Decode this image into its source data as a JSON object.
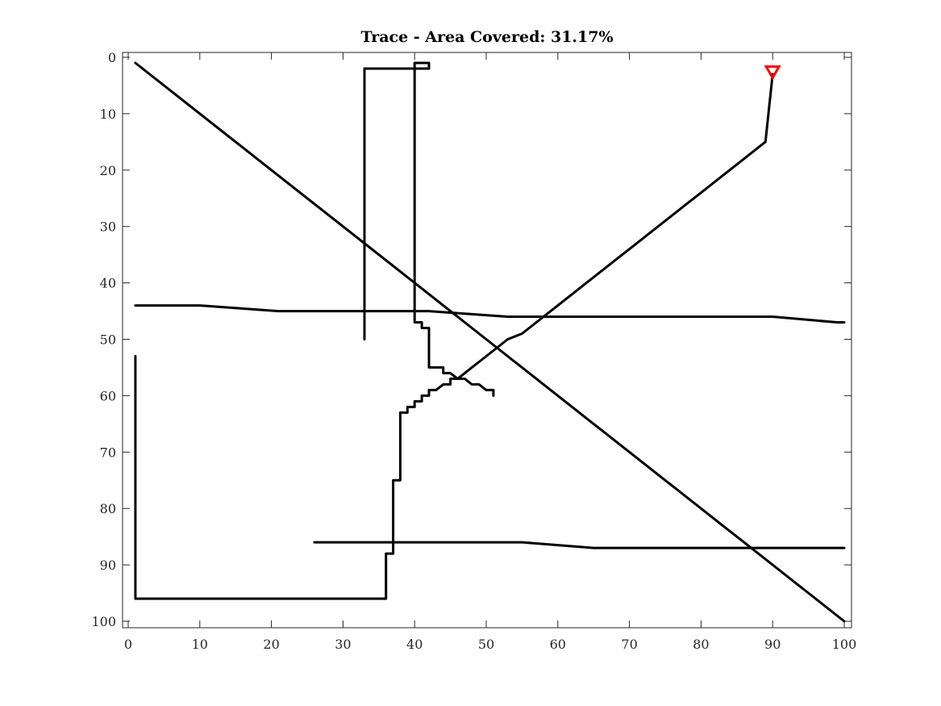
{
  "chart_data": {
    "type": "line",
    "title": "Trace - Area Covered: 31.17%",
    "xlabel": "",
    "ylabel": "",
    "xlim": [
      0,
      100
    ],
    "ylim": [
      0,
      100
    ],
    "y_reversed": true,
    "grid": false,
    "x_ticks": [
      0,
      10,
      20,
      30,
      40,
      50,
      60,
      70,
      80,
      90,
      100
    ],
    "y_ticks": [
      0,
      10,
      20,
      30,
      40,
      50,
      60,
      70,
      80,
      90,
      100
    ],
    "series": [
      {
        "color": "#000000",
        "x": [
          1,
          50,
          49,
          48,
          47,
          46,
          45,
          44,
          43,
          42,
          41,
          40,
          38,
          37,
          36,
          35,
          34,
          33,
          32,
          31,
          30,
          29,
          28,
          27,
          26,
          24,
          23,
          23,
          21,
          21,
          19,
          18,
          16,
          15,
          14,
          13,
          12,
          11,
          10,
          9,
          8,
          7,
          6,
          5,
          3,
          1,
          1,
          3,
          3,
          9,
          10,
          11,
          13,
          14,
          14,
          17,
          18,
          18,
          20,
          24,
          25,
          28,
          30,
          31,
          32,
          34,
          34,
          36,
          36,
          37,
          37,
          39,
          39,
          41,
          41,
          44,
          44,
          45,
          46,
          46,
          49,
          50,
          51,
          52,
          52,
          54,
          54,
          57,
          57,
          59,
          59,
          61,
          62,
          62,
          64,
          65,
          66,
          67,
          69,
          69,
          71,
          72,
          73,
          74,
          75,
          75,
          77,
          78,
          79,
          80,
          81,
          81,
          83,
          84,
          86,
          86,
          88,
          90,
          91,
          92,
          93,
          94,
          95,
          95,
          97,
          98,
          98,
          99,
          100,
          100,
          98,
          98,
          96,
          96,
          95,
          94,
          94,
          92,
          92,
          90,
          90,
          89,
          88,
          87,
          86,
          84,
          82,
          81,
          80,
          79,
          78,
          77,
          76,
          75,
          75,
          74,
          73,
          72,
          71,
          70,
          69,
          68,
          67,
          66,
          65,
          64,
          63,
          62,
          61,
          60,
          59,
          58,
          57,
          56,
          55,
          54,
          53,
          52,
          51,
          50,
          49,
          48,
          47,
          46,
          45,
          44,
          43,
          42,
          41,
          40,
          39,
          38,
          37,
          36,
          35,
          34,
          33,
          32,
          31,
          30,
          29,
          28,
          27,
          26,
          26,
          37,
          37,
          38,
          38,
          41,
          41,
          43,
          43,
          44,
          44,
          46,
          46,
          50,
          50,
          53,
          53,
          55,
          55,
          57,
          57,
          59,
          59,
          62,
          62,
          65,
          65,
          67,
          67,
          69,
          69,
          71,
          71,
          75,
          75,
          76,
          76,
          78,
          78,
          80,
          80,
          83,
          83,
          86,
          86,
          87,
          87,
          89,
          89,
          91,
          91,
          92,
          92,
          94,
          94,
          95,
          95,
          97,
          97,
          98,
          98,
          99,
          99,
          100,
          100
        ],
        "y": [
          1,
          50,
          49,
          48,
          47,
          46,
          45,
          44,
          43,
          42,
          41,
          40,
          38,
          37,
          36,
          35,
          34,
          33,
          32,
          31,
          30,
          29,
          28,
          27,
          26,
          24,
          23,
          23,
          21,
          21,
          19,
          18,
          16,
          15,
          14,
          13,
          12,
          11,
          10,
          9,
          8,
          7,
          6,
          5,
          3,
          1,
          1,
          3,
          3,
          9,
          10,
          11,
          13,
          14,
          14,
          17,
          18,
          18,
          20,
          24,
          25,
          28,
          30,
          31,
          32,
          34,
          34,
          36,
          36,
          37,
          37,
          39,
          39,
          41,
          41,
          44,
          44,
          45,
          46,
          46,
          49,
          50,
          51,
          52,
          52,
          54,
          54,
          57,
          57,
          59,
          59,
          61,
          62,
          62,
          64,
          65,
          66,
          67,
          69,
          69,
          71,
          72,
          73,
          74,
          75,
          75,
          77,
          78,
          79,
          80,
          81,
          81,
          83,
          84,
          86,
          86,
          88,
          90,
          91,
          92,
          93,
          94,
          95,
          95,
          97,
          98,
          98,
          99,
          100,
          100,
          98,
          98,
          96,
          96,
          95,
          94,
          94,
          92,
          92,
          90,
          90,
          89,
          88,
          87,
          86,
          84,
          82,
          81,
          80,
          79,
          78,
          77,
          76,
          75,
          75,
          74,
          73,
          72,
          71,
          70,
          69,
          68,
          67,
          66,
          65,
          64,
          63,
          62,
          61,
          60,
          59,
          58,
          57,
          56,
          55,
          54,
          53,
          52,
          51,
          50,
          49,
          48,
          47,
          46,
          45,
          44,
          43,
          42,
          41,
          40,
          39,
          38,
          37,
          36,
          35,
          34,
          33,
          32,
          31,
          30,
          29,
          28,
          27,
          26,
          26,
          37,
          37,
          38,
          38,
          41,
          41,
          43,
          43,
          44,
          44,
          46,
          46,
          50,
          50,
          53,
          53,
          55,
          55,
          57,
          57,
          59,
          59,
          62,
          62,
          65,
          65,
          67,
          67,
          69,
          69,
          71,
          71,
          75,
          75,
          76,
          76,
          78,
          78,
          80,
          80,
          83,
          83,
          86,
          86,
          87,
          87,
          89,
          89,
          91,
          91,
          92,
          92,
          94,
          94,
          95,
          95,
          97,
          97,
          98,
          98,
          99,
          99,
          100,
          100
        ]
      },
      {
        "color": "#000000",
        "x": [
          1,
          1,
          36,
          36,
          37,
          37,
          38,
          38,
          38,
          39,
          39,
          40,
          40,
          41,
          41,
          42,
          42,
          43,
          44,
          45,
          45,
          46,
          47,
          48,
          49,
          50,
          51,
          52,
          53,
          55,
          56,
          57,
          58,
          59,
          60,
          61,
          62,
          63,
          64,
          65,
          66,
          67,
          68,
          69,
          70,
          71,
          72,
          73,
          74,
          75,
          76,
          77,
          78,
          79,
          80,
          81,
          82,
          83,
          84,
          85,
          86,
          87,
          88,
          89,
          90
        ],
        "y": [
          53,
          96,
          96,
          88,
          88,
          75,
          75,
          65,
          63,
          63,
          62,
          62,
          61,
          61,
          60,
          60,
          59,
          59,
          58,
          58,
          57,
          57,
          56,
          55,
          54,
          53,
          52,
          51,
          50,
          49,
          48,
          47,
          46,
          45,
          44,
          43,
          42,
          41,
          40,
          39,
          38,
          37,
          36,
          35,
          34,
          33,
          32,
          31,
          30,
          29,
          28,
          27,
          26,
          25,
          24,
          23,
          22,
          21,
          20,
          19,
          18,
          17,
          16,
          15,
          3
        ]
      },
      {
        "color": "#000000",
        "x": [
          1,
          10,
          21,
          32,
          42,
          53,
          63,
          73,
          83,
          90,
          99,
          100
        ],
        "y": [
          44,
          44,
          45,
          45,
          45,
          46,
          46,
          46,
          46,
          46,
          47,
          47
        ]
      },
      {
        "color": "#000000",
        "x": [
          26,
          35,
          45,
          55,
          65,
          75,
          85,
          95,
          100
        ],
        "y": [
          86,
          86,
          86,
          86,
          87,
          87,
          87,
          87,
          87
        ]
      },
      {
        "color": "#000000",
        "x": [
          33,
          33,
          36,
          42,
          42,
          40,
          40,
          41,
          41,
          42,
          42,
          44,
          44,
          45,
          46,
          47,
          48,
          49,
          50,
          51,
          51
        ],
        "y": [
          50,
          2,
          2,
          2,
          1,
          1,
          47,
          47,
          48,
          48,
          55,
          55,
          56,
          56,
          57,
          57,
          58,
          58,
          59,
          59,
          60
        ]
      }
    ],
    "marker": {
      "x": 90,
      "y": 2.5,
      "color": "#ff0000",
      "symbol": "triangle-down"
    }
  }
}
